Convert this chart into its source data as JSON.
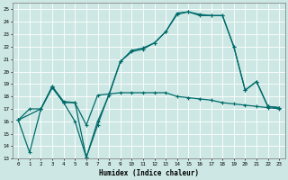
{
  "xlabel": "Humidex (Indice chaleur)",
  "bg_color": "#cde8e4",
  "line_color": "#006b6b",
  "grid_color": "#ffffff",
  "xlim": [
    -0.5,
    23.5
  ],
  "ylim": [
    13,
    25.5
  ],
  "yticks": [
    13,
    14,
    15,
    16,
    17,
    18,
    19,
    20,
    21,
    22,
    23,
    24,
    25
  ],
  "xticks": [
    0,
    1,
    2,
    3,
    4,
    5,
    6,
    7,
    8,
    9,
    10,
    11,
    12,
    13,
    14,
    15,
    16,
    17,
    18,
    19,
    20,
    21,
    22,
    23
  ],
  "line1_x": [
    0,
    1,
    2,
    3,
    4,
    5,
    6,
    7,
    8,
    9,
    10,
    11,
    12,
    13,
    14,
    15,
    16,
    17,
    18,
    19,
    20,
    21,
    22,
    23
  ],
  "line1_y": [
    16.1,
    13.5,
    17.0,
    18.7,
    17.5,
    16.0,
    13.1,
    16.0,
    18.1,
    20.8,
    21.6,
    21.8,
    22.3,
    23.2,
    24.6,
    24.8,
    24.5,
    24.5,
    24.5,
    22.0,
    18.5,
    19.2,
    17.2,
    17.1
  ],
  "line2_x": [
    0,
    1,
    2,
    3,
    4,
    5,
    6,
    7,
    8,
    9,
    10,
    11,
    12,
    13,
    14,
    15,
    16,
    17,
    18,
    19,
    20,
    21,
    22,
    23
  ],
  "line2_y": [
    16.1,
    17.0,
    17.0,
    18.8,
    17.5,
    17.5,
    15.7,
    18.1,
    18.2,
    18.3,
    18.3,
    18.3,
    18.3,
    18.3,
    18.0,
    17.9,
    17.8,
    17.7,
    17.5,
    17.4,
    17.3,
    17.2,
    17.1,
    17.0
  ],
  "line3_x": [
    0,
    2,
    3,
    4,
    5,
    6,
    7,
    8,
    9,
    10,
    11,
    12,
    13,
    14,
    15,
    16,
    17,
    18,
    19,
    20,
    21,
    22,
    23
  ],
  "line3_y": [
    16.1,
    17.0,
    18.8,
    17.6,
    17.5,
    13.1,
    15.7,
    18.2,
    20.8,
    21.7,
    21.9,
    22.3,
    23.2,
    24.7,
    24.8,
    24.6,
    24.5,
    24.5,
    22.0,
    18.5,
    19.2,
    17.2,
    17.1
  ]
}
